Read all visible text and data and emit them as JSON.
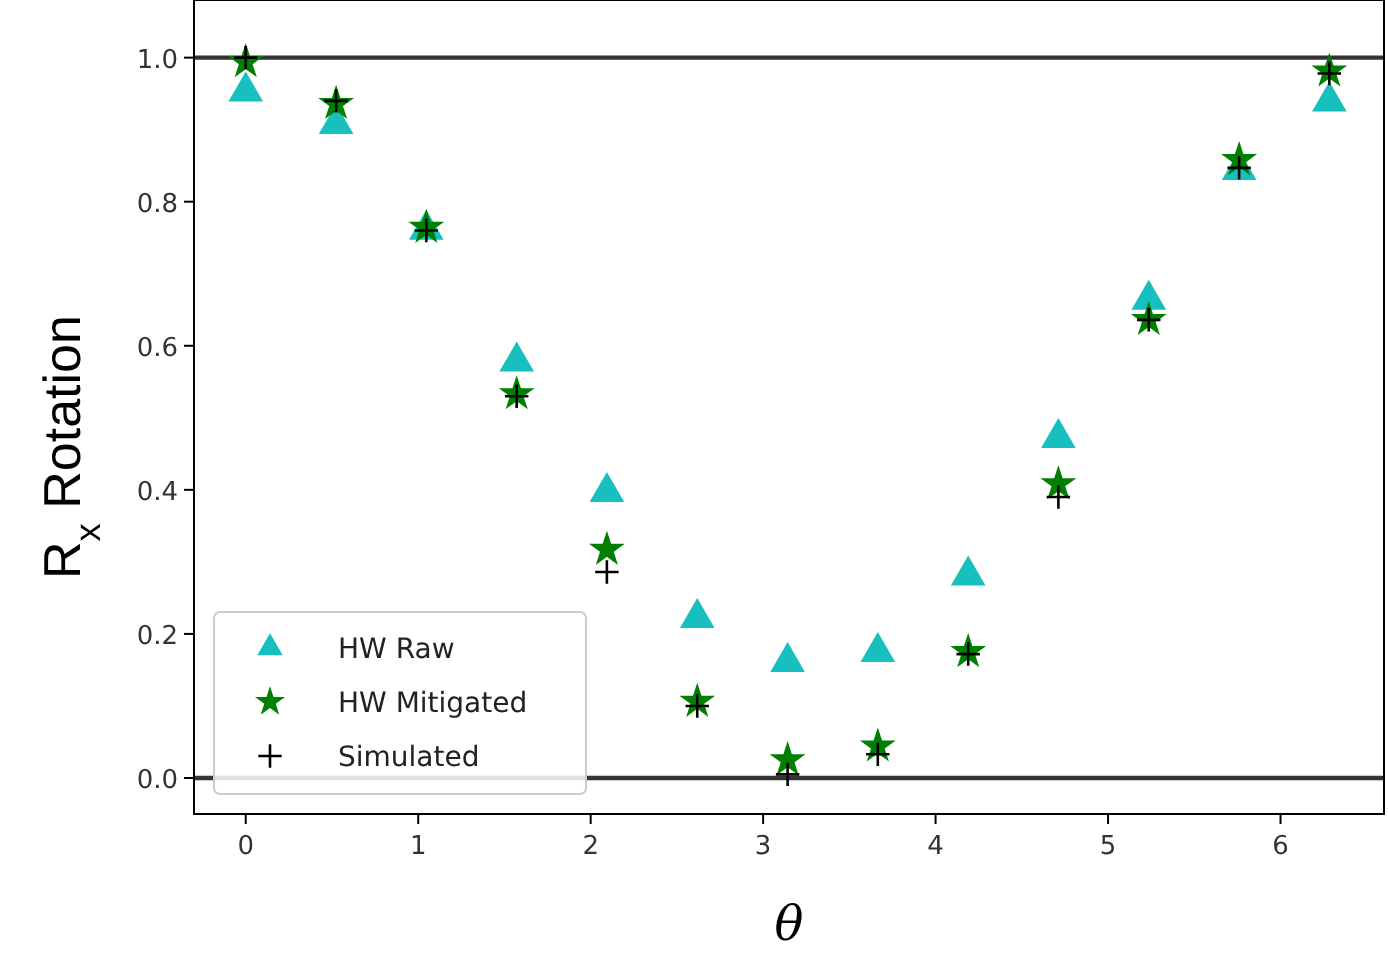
{
  "chart_data": {
    "type": "scatter",
    "xlabel": "θ",
    "ylabel": "R$_{x}$ Rotation",
    "x": [
      0,
      0.524,
      1.047,
      1.571,
      2.094,
      2.618,
      3.142,
      3.665,
      4.189,
      4.712,
      5.236,
      5.76,
      6.283
    ],
    "series": [
      {
        "name": "HW Raw",
        "color": "#17bfbf",
        "marker": "triangle",
        "values": [
          0.953,
          0.908,
          0.761,
          0.578,
          0.397,
          0.222,
          0.161,
          0.175,
          0.281,
          0.472,
          0.664,
          0.844,
          0.939
        ]
      },
      {
        "name": "HW Mitigated",
        "color": "#008000",
        "marker": "star",
        "values": [
          0.994,
          0.936,
          0.764,
          0.533,
          0.317,
          0.106,
          0.025,
          0.044,
          0.175,
          0.408,
          0.636,
          0.858,
          0.981
        ]
      },
      {
        "name": "Simulated",
        "color": "#000000",
        "marker": "cross",
        "values": [
          1.0,
          0.94,
          0.76,
          0.53,
          0.286,
          0.1,
          0.005,
          0.033,
          0.172,
          0.39,
          0.636,
          0.847,
          0.978
        ]
      }
    ],
    "xlim": [
      -0.3,
      6.6
    ],
    "ylim": [
      -0.05,
      1.08
    ],
    "xticks": [
      0,
      1,
      2,
      3,
      4,
      5,
      6
    ],
    "yticks": [
      {
        "value": 0,
        "label": "0.0"
      },
      {
        "value": 0.2,
        "label": "0.2"
      },
      {
        "value": 0.4,
        "label": "0.4"
      },
      {
        "value": 0.6,
        "label": "0.6"
      },
      {
        "value": 0.8,
        "label": "0.8"
      },
      {
        "value": 1,
        "label": "1.0"
      }
    ],
    "ref_lines": [
      {
        "axis": "y",
        "value": 0,
        "color": "#333333"
      },
      {
        "axis": "y",
        "value": 1,
        "color": "#333333"
      }
    ],
    "legend": "bottom left",
    "grid": false
  }
}
